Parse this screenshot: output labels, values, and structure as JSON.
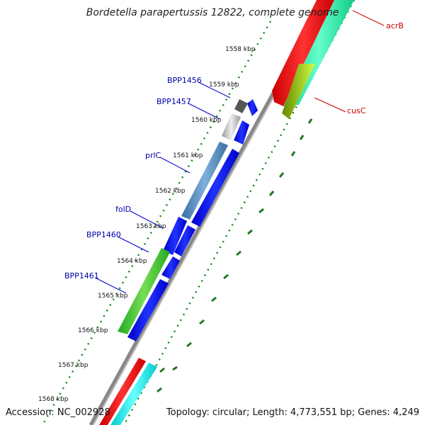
{
  "title": "Bordetella parapertussis 12822, complete genome",
  "accession": "Accession: NC_002928",
  "summary": "Topology: circular; Length: 4,773,551 bp; Genes: 4,249",
  "ticks": [
    "1558 kbp",
    "1559 kbp",
    "1560 kbp",
    "1561 kbp",
    "1562 kbp",
    "1563 kbp",
    "1564 kbp",
    "1565 kbp",
    "1566 kbp",
    "1567 kbp",
    "1568 kbp"
  ],
  "left_labels": [
    {
      "text": "BPP1456",
      "color": "#0000aa"
    },
    {
      "text": "BPP1457",
      "color": "#0000aa"
    },
    {
      "text": "prlC",
      "color": "#0000aa"
    },
    {
      "text": "folD",
      "color": "#0000aa"
    },
    {
      "text": "BPP1460",
      "color": "#0000aa"
    },
    {
      "text": "BPP1461",
      "color": "#0000aa"
    }
  ],
  "right_labels": [
    {
      "text": "acrB",
      "color": "#cc0000"
    },
    {
      "text": "cusC",
      "color": "#cc0000"
    }
  ]
}
